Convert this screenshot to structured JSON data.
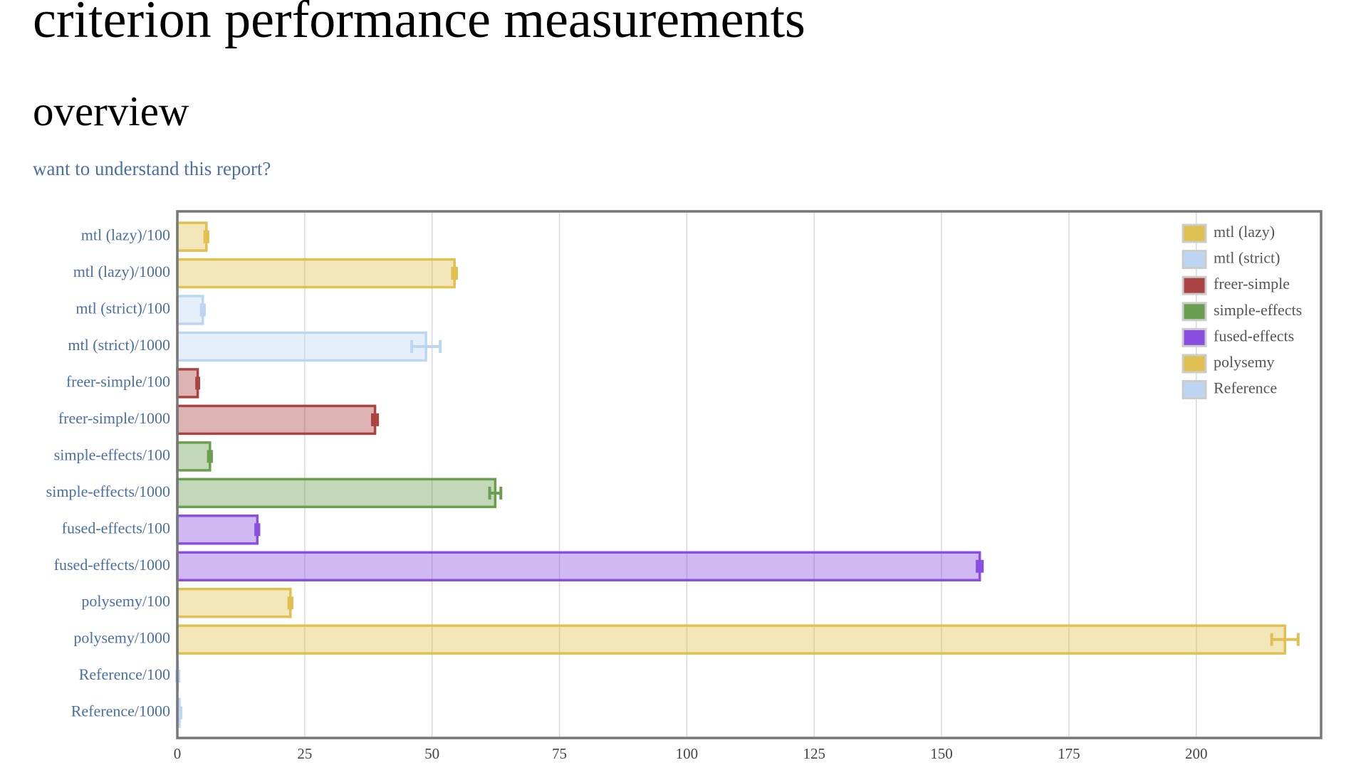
{
  "header": {
    "title": "criterion performance measurements",
    "subtitle": "overview",
    "link": "want to understand this report?"
  },
  "chart_data": {
    "type": "bar",
    "orientation": "horizontal",
    "grid": true,
    "legend": "top-right",
    "xlim": [
      0,
      224.5
    ],
    "xticks": [
      0,
      25,
      50,
      75,
      100,
      125,
      150,
      175,
      200
    ],
    "series": [
      {
        "name": "mtl (lazy)",
        "color": "#e0c050",
        "labels": [
          "mtl (lazy)/100",
          "mtl (lazy)/1000"
        ],
        "values": [
          5.7,
          54.4
        ],
        "errors": [
          0.3,
          0.4
        ]
      },
      {
        "name": "mtl (strict)",
        "color": "#bcd6f2",
        "labels": [
          "mtl (strict)/100",
          "mtl (strict)/1000"
        ],
        "values": [
          5.0,
          48.8
        ],
        "errors": [
          0.3,
          2.8
        ]
      },
      {
        "name": "freer-simple",
        "color": "#a94442",
        "labels": [
          "freer-simple/100",
          "freer-simple/1000"
        ],
        "values": [
          4.0,
          38.8
        ],
        "errors": [
          0.2,
          0.5
        ]
      },
      {
        "name": "simple-effects",
        "color": "#6a9e50",
        "labels": [
          "simple-effects/100",
          "simple-effects/1000"
        ],
        "values": [
          6.4,
          62.4
        ],
        "errors": [
          0.3,
          1.1
        ]
      },
      {
        "name": "fused-effects",
        "color": "#8a4fe0",
        "labels": [
          "fused-effects/100",
          "fused-effects/1000"
        ],
        "values": [
          15.7,
          157.5
        ],
        "errors": [
          0.3,
          0.5
        ]
      },
      {
        "name": "polysemy",
        "color": "#e0c050",
        "labels": [
          "polysemy/100",
          "polysemy/1000"
        ],
        "values": [
          22.2,
          217.4
        ],
        "errors": [
          0.3,
          2.6
        ]
      },
      {
        "name": "Reference",
        "color": "#bcd6f2",
        "labels": [
          "Reference/100",
          "Reference/1000"
        ],
        "values": [
          0.1,
          0.4
        ],
        "errors": [
          0.2,
          0.3
        ]
      }
    ]
  }
}
